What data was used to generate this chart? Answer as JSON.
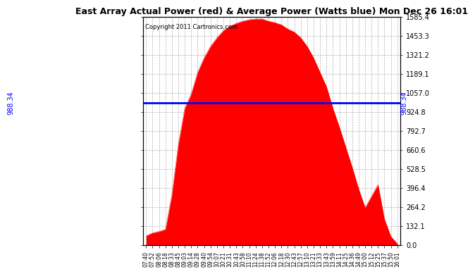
{
  "title": "East Array Actual Power (red) & Average Power (Watts blue) Mon Dec 26 16:01",
  "copyright": "Copyright 2011 Cartronics.com",
  "average_power": 988.34,
  "y_max": 1585.4,
  "y_min": 0.0,
  "y_ticks": [
    0.0,
    132.1,
    264.2,
    396.4,
    528.5,
    660.6,
    792.7,
    924.8,
    1057.0,
    1189.1,
    1321.2,
    1453.3,
    1585.4
  ],
  "fill_color": "red",
  "line_color": "blue",
  "background_color": "#ffffff",
  "grid_color": "#b0b0b0",
  "x_labels": [
    "07:40",
    "07:52",
    "08:06",
    "08:18",
    "08:33",
    "08:45",
    "09:03",
    "09:14",
    "09:28",
    "09:40",
    "09:54",
    "10:07",
    "10:21",
    "10:31",
    "10:43",
    "10:58",
    "11:10",
    "11:24",
    "11:38",
    "11:52",
    "12:06",
    "12:18",
    "12:30",
    "12:43",
    "12:57",
    "13:10",
    "13:21",
    "13:33",
    "13:43",
    "13:59",
    "14:11",
    "14:25",
    "14:36",
    "14:49",
    "15:00",
    "15:12",
    "15:25",
    "15:37",
    "15:50",
    "16:01"
  ],
  "power_values": [
    60,
    80,
    100,
    120,
    350,
    700,
    950,
    1050,
    1200,
    1300,
    1380,
    1440,
    1490,
    1520,
    1540,
    1555,
    1565,
    1570,
    1570,
    1555,
    1545,
    1530,
    1500,
    1480,
    1440,
    1380,
    1300,
    1200,
    1100,
    950,
    820,
    680,
    540,
    390,
    260,
    340,
    420,
    180,
    60,
    10
  ]
}
